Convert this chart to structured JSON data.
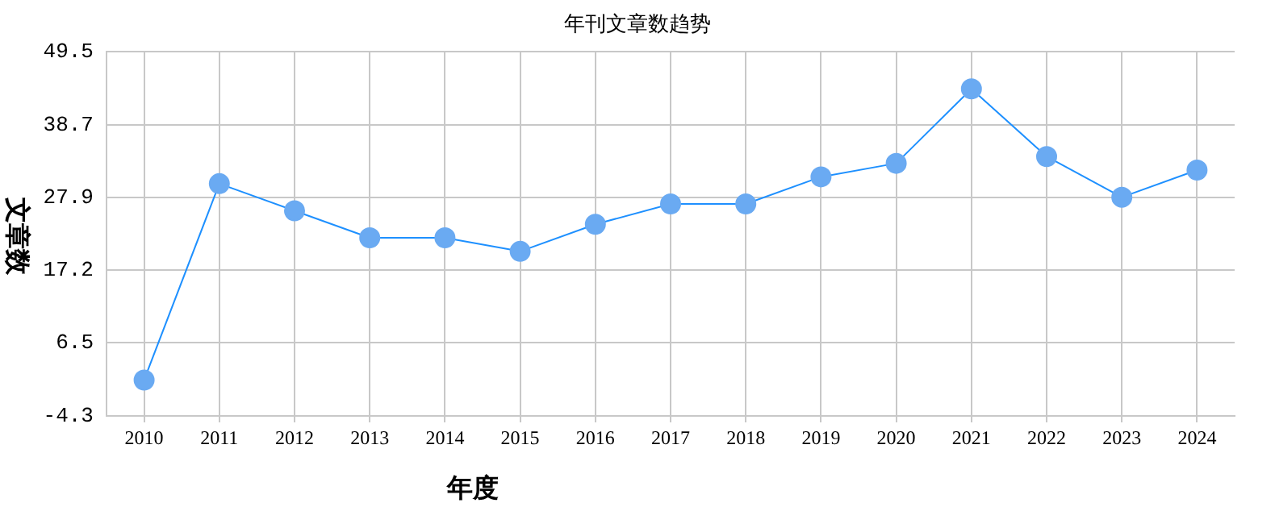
{
  "chart_data": {
    "type": "line",
    "title": "年刊文章数趋势",
    "xlabel": "年度",
    "ylabel": "文章数",
    "categories": [
      "2010",
      "2011",
      "2012",
      "2013",
      "2014",
      "2015",
      "2016",
      "2017",
      "2018",
      "2019",
      "2020",
      "2021",
      "2022",
      "2023",
      "2024"
    ],
    "series": [
      {
        "color": "#1e90ff",
        "values": [
          1,
          30,
          26,
          22,
          22,
          20,
          24,
          27,
          27,
          31,
          33,
          44,
          34,
          28,
          32
        ]
      }
    ],
    "ylim": [
      -4.3,
      49.5
    ],
    "yticks": [
      -4.3,
      6.5,
      17.2,
      27.9,
      38.7,
      49.5
    ],
    "grid": true,
    "marker": "circle"
  }
}
